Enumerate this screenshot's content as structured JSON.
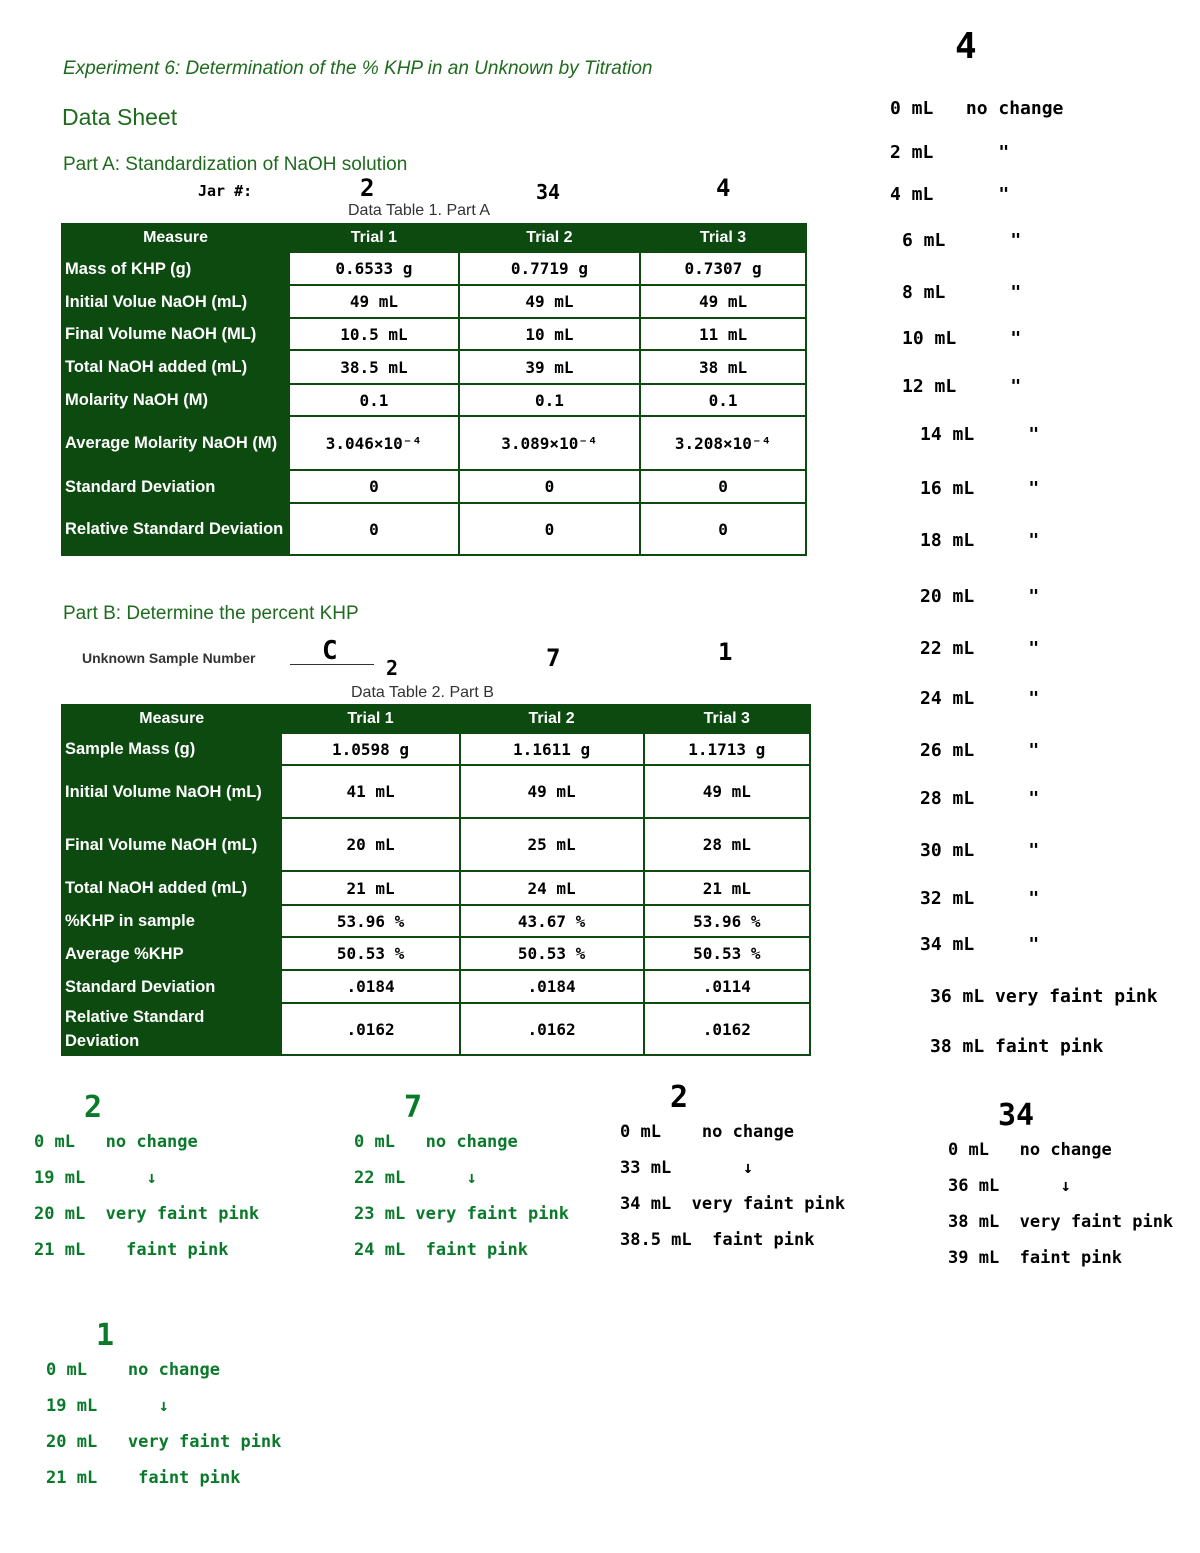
{
  "title": "Experiment 6: Determination of the % KHP in an Unknown by Titration",
  "subtitle": "Data Sheet",
  "partA": {
    "heading": "Part A: Standardization of NaOH solution",
    "jar_label": "Jar #:",
    "jars": [
      "2",
      "34",
      "4"
    ],
    "caption": "Data Table 1. Part A",
    "headers": [
      "Measure",
      "Trial 1",
      "Trial 2",
      "Trial 3"
    ],
    "rows": [
      {
        "m": "Mass of KHP (g)",
        "v": [
          "0.6533 g",
          "0.7719 g",
          "0.7307 g"
        ]
      },
      {
        "m": "Initial Volue NaOH (mL)",
        "v": [
          "49 mL",
          "49 mL",
          "49 mL"
        ]
      },
      {
        "m": "Final Volume NaOH (ML)",
        "v": [
          "10.5 mL",
          "10 mL",
          "11 mL"
        ]
      },
      {
        "m": "Total NaOH added (mL)",
        "v": [
          "38.5 mL",
          "39 mL",
          "38 mL"
        ]
      },
      {
        "m": "Molarity NaOH (M)",
        "v": [
          "0.1",
          "0.1",
          "0.1"
        ]
      },
      {
        "m": "Average Molarity NaOH (M)",
        "v": [
          "3.046×10⁻⁴",
          "3.089×10⁻⁴",
          "3.208×10⁻⁴"
        ]
      },
      {
        "m": "Standard Deviation",
        "v": [
          "0",
          "0",
          "0"
        ]
      },
      {
        "m": "Relative Standard Deviation",
        "v": [
          "0",
          "0",
          "0"
        ]
      }
    ]
  },
  "partB": {
    "heading": "Part B: Determine the percent KHP",
    "unknown_label": "Unknown Sample Number",
    "unknown_value": "C",
    "jars": [
      "2",
      "7",
      "1"
    ],
    "caption": "Data Table 2. Part B",
    "headers": [
      "Measure",
      "Trial 1",
      "Trial 2",
      "Trial 3"
    ],
    "rows": [
      {
        "m": "Sample Mass (g)",
        "v": [
          "1.0598 g",
          "1.1611 g",
          "1.1713 g"
        ]
      },
      {
        "m": "Initial Volume NaOH (mL)",
        "v": [
          "41 mL",
          "49 mL",
          "49 mL"
        ]
      },
      {
        "m": "Final Volume NaOH (mL)",
        "v": [
          "20 mL",
          "25 mL",
          "28 mL"
        ]
      },
      {
        "m": "Total NaOH added (mL)",
        "v": [
          "21 mL",
          "24 mL",
          "21 mL"
        ]
      },
      {
        "m": "%KHP in sample",
        "v": [
          "53.96 %",
          "43.67 %",
          "53.96 %"
        ]
      },
      {
        "m": "Average %KHP",
        "v": [
          "50.53 %",
          "50.53 %",
          "50.53 %"
        ]
      },
      {
        "m": "Standard Deviation",
        "v": [
          ".0184",
          ".0184",
          ".0114"
        ]
      },
      {
        "m": "Relative Standard Deviation",
        "v": [
          ".0162",
          ".0162",
          ".0162"
        ]
      }
    ]
  },
  "notes_right": {
    "title": "4",
    "lines": [
      "0 mL   no change",
      "2 mL      \"",
      "4 mL      \"",
      "6 mL      \"",
      "8 mL      \"",
      "10 mL     \"",
      "12 mL     \"",
      "14 mL     \"",
      "16 mL     \"",
      "18 mL     \"",
      "20 mL     \"",
      "22 mL     \"",
      "24 mL     \"",
      "26 mL     \"",
      "28 mL     \"",
      "30 mL     \"",
      "32 mL     \"",
      "34 mL     \"",
      "36 mL very faint pink",
      "38 mL faint pink"
    ]
  },
  "notes_bottom": [
    {
      "title": "2",
      "lines": [
        "0 mL   no change",
        "19 mL      ↓",
        "20 mL  very faint pink",
        "21 mL    faint pink"
      ],
      "color": "green"
    },
    {
      "title": "7",
      "lines": [
        "0 mL   no change",
        "22 mL      ↓",
        "23 mL very faint pink",
        "24 mL  faint pink"
      ],
      "color": "green"
    },
    {
      "title": "2",
      "lines": [
        "0 mL    no change",
        "33 mL       ↓",
        "34 mL  very faint pink",
        "38.5 mL  faint pink"
      ],
      "color": "black"
    },
    {
      "title": "34",
      "lines": [
        "0 mL   no change",
        "36 mL      ↓",
        "38 mL  very faint pink",
        "39 mL  faint pink"
      ],
      "color": "black"
    },
    {
      "title": "1",
      "lines": [
        "0 mL    no change",
        "19 mL      ↓",
        "20 mL   very faint pink",
        "21 mL    faint pink"
      ],
      "color": "green"
    }
  ]
}
